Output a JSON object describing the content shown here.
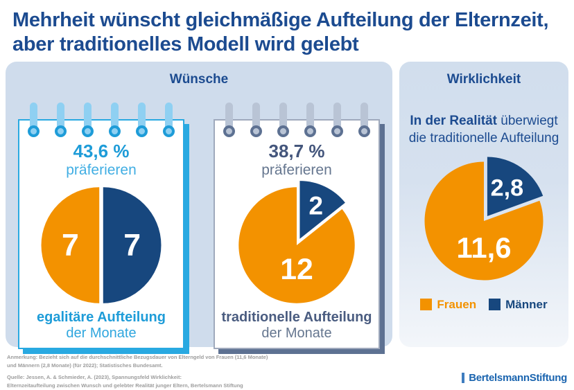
{
  "title": {
    "line1": "Mehrheit wünscht gleichmäßige Aufteilung der Elternzeit,",
    "line2": "aber traditionelles Modell wird gelebt"
  },
  "colors": {
    "navy_title": "#1C4B90",
    "pie_navy": "#17477E",
    "pie_orange": "#F39200",
    "accent_blue": "#29A9E1",
    "accent_slate": "#5D7192",
    "panel_bg": "#CFDCEC",
    "footnote_gray": "#9C9C9C",
    "logo_blue": "#1A64AF"
  },
  "wuensche": {
    "header": "Wünsche",
    "cards": [
      {
        "percent": "43,6 %",
        "percent_sub": "präferieren",
        "label_bold": "egalitäre Aufteilung",
        "label_sub": "der Monate"
      },
      {
        "percent": "38,7 %",
        "percent_sub": "präferieren",
        "label_bold": "traditionelle Aufteilung",
        "label_sub": "der Monate"
      }
    ]
  },
  "wirklichkeit": {
    "header": "Wirklichkeit",
    "subtitle_bold": "In der Realität",
    "subtitle_rest": " überwiegt",
    "subtitle_line2": "die traditionelle Aufteilung",
    "legend": [
      {
        "label": "Frauen",
        "color": "#F39200"
      },
      {
        "label": "Männer",
        "color": "#17477E"
      }
    ]
  },
  "chart_data": [
    {
      "type": "pie",
      "name": "wunsch-egalitaere-aufteilung",
      "title": "43,6 % präferieren egalitäre Aufteilung der Monate",
      "unit": "Monate",
      "slices": [
        {
          "label": "Männer",
          "value": 7,
          "color": "#17477E",
          "text": "7",
          "explode": 3,
          "label_r": 0.5,
          "label_size": 48
        },
        {
          "label": "Frauen",
          "value": 7,
          "color": "#F39200",
          "text": "7",
          "explode": 3,
          "label_r": 0.5,
          "label_size": 48
        }
      ]
    },
    {
      "type": "pie",
      "name": "wunsch-traditionelle-aufteilung",
      "title": "38,7 % präferieren traditionelle Aufteilung der Monate",
      "unit": "Monate",
      "slices": [
        {
          "label": "Männer",
          "value": 2,
          "color": "#17477E",
          "text": "2",
          "explode": 11,
          "label_r": 0.64,
          "label_size": 40
        },
        {
          "label": "Frauen",
          "value": 12,
          "color": "#F39200",
          "text": "12",
          "explode": 0,
          "label_angle": 180,
          "label_r": 0.42,
          "label_size": 46
        }
      ]
    },
    {
      "type": "pie",
      "name": "wirklichkeit-aufteilung",
      "title": "In der Realität überwiegt die traditionelle Aufteilung",
      "unit": "Monate",
      "legend": [
        "Frauen",
        "Männer"
      ],
      "slices": [
        {
          "label": "Männer",
          "value": 2.8,
          "color": "#17477E",
          "text": "2,8",
          "explode": 9,
          "label_r": 0.58,
          "label_size": 36
        },
        {
          "label": "Frauen",
          "value": 11.6,
          "color": "#F39200",
          "text": "11,6",
          "explode": 0,
          "label_angle": 180,
          "label_r": 0.45,
          "label_size": 44
        }
      ]
    }
  ],
  "footnotes": {
    "note_lines": [
      "Anmerkung: Bezieht sich auf die durchschnittliche Bezugsdauer von Elterngeld von Frauen (11,6 Monate)",
      "und Männern (2,8 Monate) (für 2022); Statistisches Bundesamt."
    ],
    "source_lines": [
      "Quelle: Jessen, A. & Schmieder, A. (2023), Spannungsfeld Wirklichkeit:",
      "Elternzeitaufteilung zwischen Wunsch und gelebter Realität junger Eltern, Bertelsmann Stiftung"
    ]
  },
  "logo": {
    "text": "BertelsmannStiftung"
  }
}
